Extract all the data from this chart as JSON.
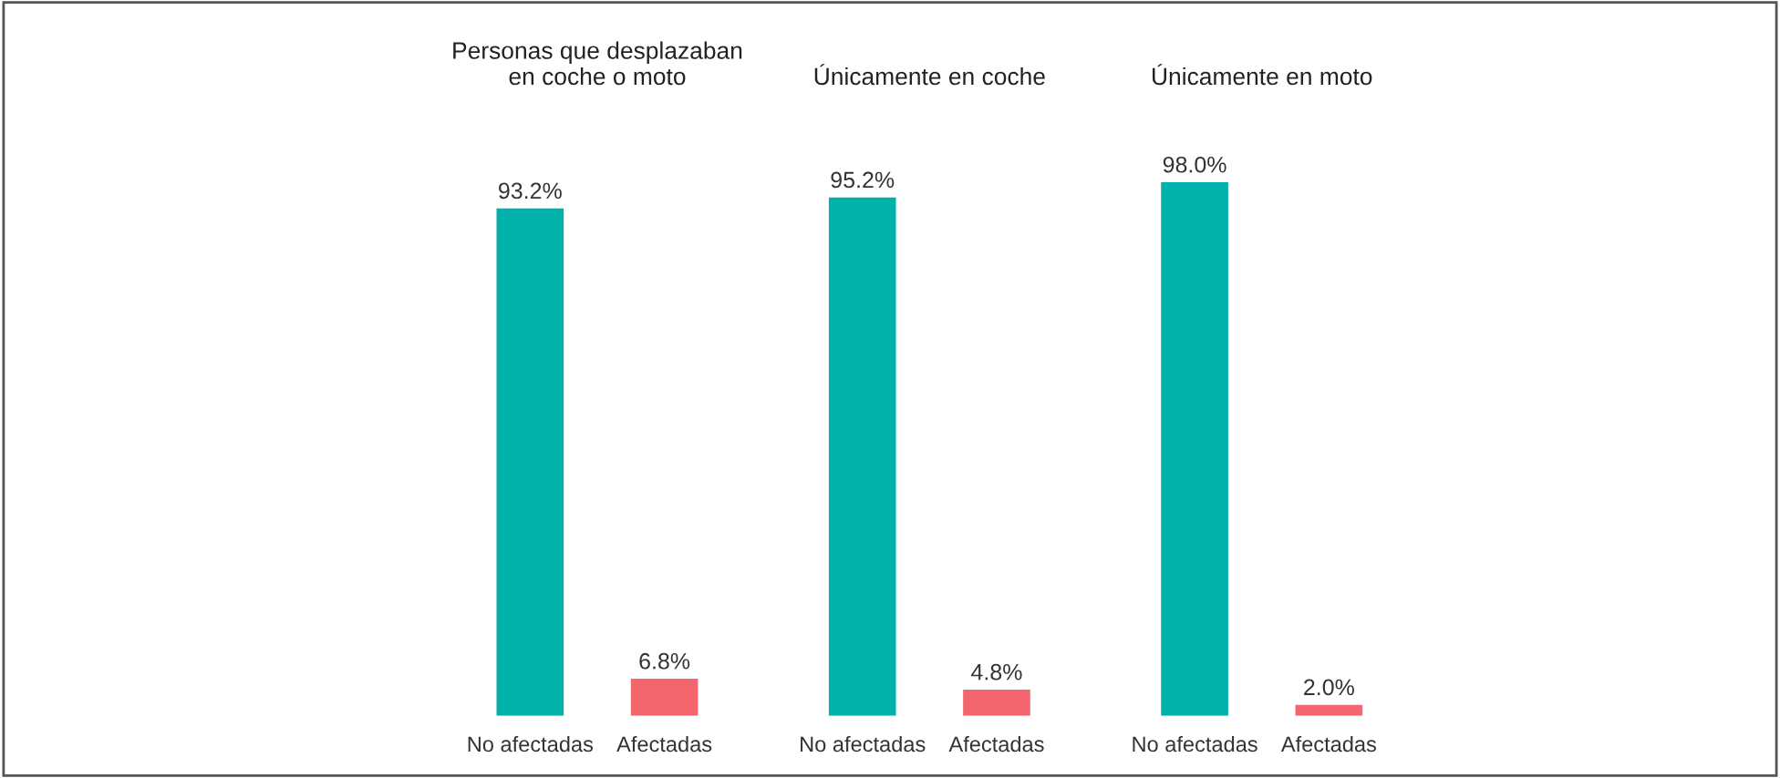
{
  "chart_data": [
    {
      "type": "bar",
      "title": "Personas que desplazaban\nen coche o moto",
      "categories": [
        "No afectadas",
        "Afectadas"
      ],
      "values": [
        93.2,
        6.8
      ],
      "colors": [
        "#00b2a9",
        "#f4666e"
      ],
      "value_labels": [
        "93.2%",
        "6.8%"
      ],
      "grid": false,
      "legend": false
    },
    {
      "type": "bar",
      "title": "Únicamente en coche",
      "categories": [
        "No afectadas",
        "Afectadas"
      ],
      "values": [
        95.2,
        4.8
      ],
      "colors": [
        "#00b2a9",
        "#f4666e"
      ],
      "value_labels": [
        "95.2%",
        "4.8%"
      ],
      "grid": false,
      "legend": false
    },
    {
      "type": "bar",
      "title": "Únicamente en moto",
      "categories": [
        "No afectadas",
        "Afectadas"
      ],
      "values": [
        98.0,
        2.0
      ],
      "colors": [
        "#00b2a9",
        "#f4666e"
      ],
      "value_labels": [
        "98.0%",
        "2.0%"
      ],
      "grid": false,
      "legend": false
    }
  ]
}
